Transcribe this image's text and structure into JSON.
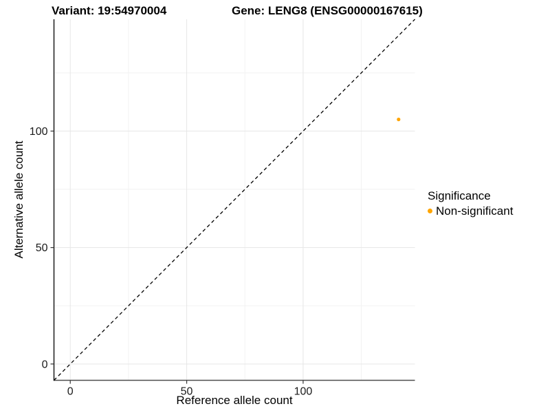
{
  "titles": {
    "variant": "Variant: 19:54970004",
    "gene": "Gene: LENG8 (ENSG00000167615)"
  },
  "chart_data": {
    "type": "scatter",
    "xlabel": "Reference allele count",
    "ylabel": "Alternative allele count",
    "xlim": [
      -7,
      148
    ],
    "ylim": [
      -7,
      148
    ],
    "x_ticks": [
      0,
      50,
      100
    ],
    "y_ticks": [
      0,
      50,
      100
    ],
    "x_minor_ticks": [
      25,
      75,
      125
    ],
    "y_minor_ticks": [
      25,
      75,
      125
    ],
    "grid": true,
    "background": "#ffffff",
    "major_grid_color": "#e6e6e6",
    "minor_grid_color": "#f2f2f2",
    "identity_line": {
      "style": "dashed",
      "color": "#000000",
      "from": [
        -7,
        -7
      ],
      "to": [
        148,
        148
      ]
    },
    "series": [
      {
        "name": "Non-significant",
        "color": "#FFA500",
        "points": [
          {
            "x": 141,
            "y": 105
          }
        ]
      }
    ],
    "legend": {
      "title": "Significance",
      "position": "right",
      "entries": [
        {
          "label": "Non-significant",
          "color": "#FFA500"
        }
      ]
    }
  }
}
